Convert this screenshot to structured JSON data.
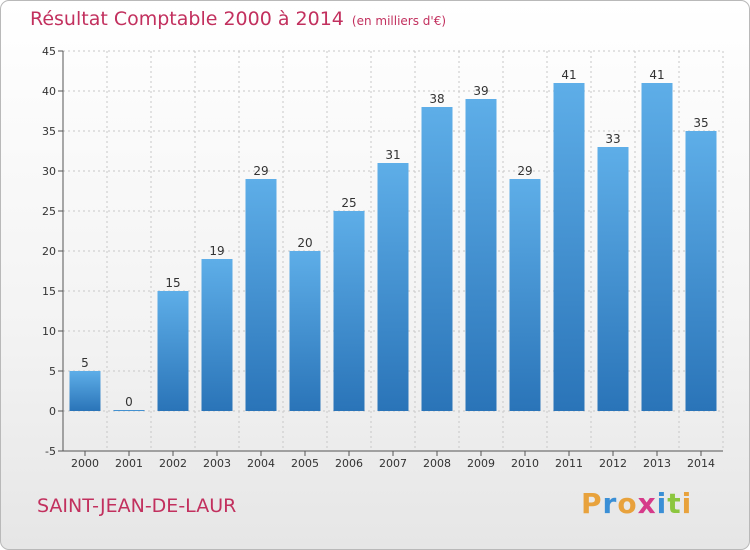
{
  "chart_data": {
    "type": "bar",
    "title": "Résultat Comptable 2000 à 2014",
    "unit_note": "(en milliers d'€)",
    "categories": [
      "2000",
      "2001",
      "2002",
      "2003",
      "2004",
      "2005",
      "2006",
      "2007",
      "2008",
      "2009",
      "2010",
      "2011",
      "2012",
      "2013",
      "2014"
    ],
    "values": [
      5,
      0,
      15,
      19,
      29,
      20,
      25,
      31,
      38,
      39,
      29,
      41,
      33,
      41,
      35
    ],
    "ylim": [
      -5,
      45
    ],
    "yticks": [
      -5,
      0,
      5,
      10,
      15,
      20,
      25,
      30,
      35,
      40,
      45
    ],
    "grid": true,
    "xlabel": "",
    "ylabel": ""
  },
  "commune": "SAINT-JEAN-DE-LAUR",
  "logo": {
    "text": "Proxiti",
    "letter_colors": [
      "#e8a23c",
      "#3a8fd6",
      "#e8a23c",
      "#d63a8a",
      "#3a8fd6",
      "#8cc63f",
      "#e8a23c"
    ]
  },
  "colors": {
    "bar_light": "#5eaee8",
    "bar_dark": "#2a74b8",
    "title": "#c2305e",
    "grid": "#c8c8c8"
  }
}
